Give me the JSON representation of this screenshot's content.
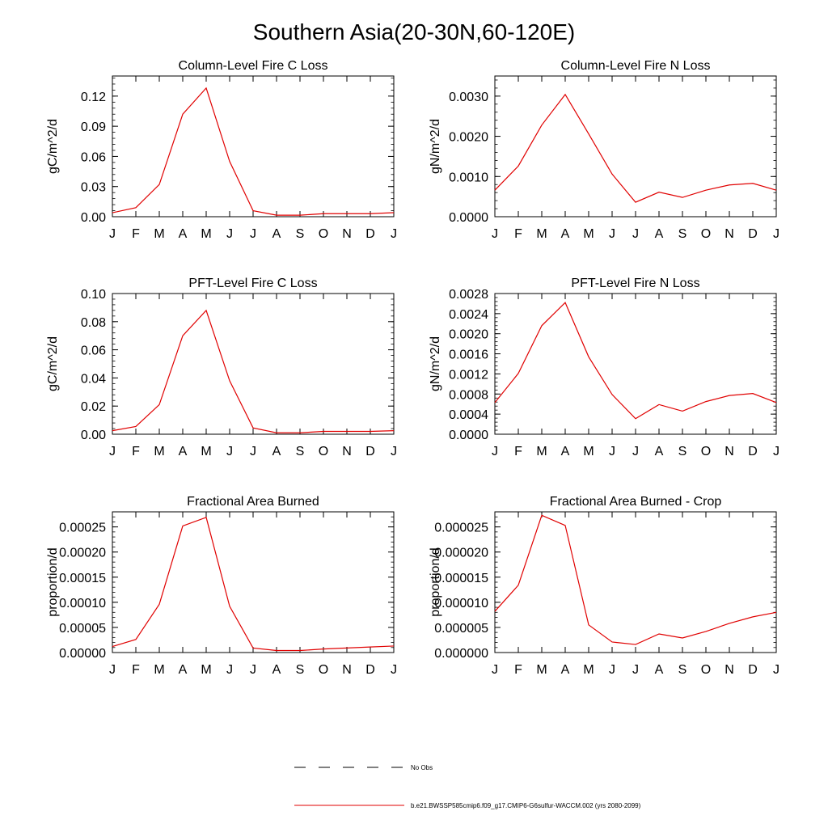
{
  "figure": {
    "title": "Southern Asia(20-30N,60-120E)",
    "months": [
      "J",
      "F",
      "M",
      "A",
      "M",
      "J",
      "J",
      "A",
      "S",
      "O",
      "N",
      "D",
      "J"
    ],
    "series_color": "#e00000",
    "legend": [
      {
        "label": "No Obs",
        "style": "dashed",
        "color": "#000000"
      },
      {
        "label": "b.e21.BWSSP585cmip6.f09_g17.CMIP6-G6sulfur-WACCM.002 (yrs 2080-2099)",
        "style": "solid",
        "color": "#e00000"
      }
    ]
  },
  "chart_data": [
    {
      "type": "line",
      "title": "Column-Level Fire C Loss",
      "ylabel": "gC/m^2/d",
      "ylim": [
        0,
        0.14
      ],
      "yticks": [
        0,
        0.03,
        0.06,
        0.09,
        0.12
      ],
      "ytick_labels": [
        "0.00",
        "0.03",
        "0.06",
        "0.09",
        "0.12"
      ],
      "x": [
        "J",
        "F",
        "M",
        "A",
        "M",
        "J",
        "J",
        "A",
        "S",
        "O",
        "N",
        "D",
        "J"
      ],
      "series": [
        {
          "values": [
            0.004,
            0.009,
            0.032,
            0.102,
            0.128,
            0.055,
            0.006,
            0.0015,
            0.0015,
            0.003,
            0.003,
            0.003,
            0.004
          ]
        }
      ]
    },
    {
      "type": "line",
      "title": "Column-Level Fire N Loss",
      "ylabel": "gN/m^2/d",
      "ylim": [
        0,
        0.0035
      ],
      "yticks": [
        0,
        0.001,
        0.002,
        0.003
      ],
      "ytick_labels": [
        "0.0000",
        "0.0010",
        "0.0020",
        "0.0030"
      ],
      "x": [
        "J",
        "F",
        "M",
        "A",
        "M",
        "J",
        "J",
        "A",
        "S",
        "O",
        "N",
        "D",
        "J"
      ],
      "series": [
        {
          "values": [
            0.00066,
            0.00126,
            0.00228,
            0.00304,
            0.00206,
            0.00106,
            0.00036,
            0.00061,
            0.00048,
            0.00066,
            0.00079,
            0.00083,
            0.00066
          ]
        }
      ]
    },
    {
      "type": "line",
      "title": "PFT-Level Fire C Loss",
      "ylabel": "gC/m^2/d",
      "ylim": [
        0,
        0.1
      ],
      "yticks": [
        0,
        0.02,
        0.04,
        0.06,
        0.08,
        0.1
      ],
      "ytick_labels": [
        "0.00",
        "0.02",
        "0.04",
        "0.06",
        "0.08",
        "0.10"
      ],
      "x": [
        "J",
        "F",
        "M",
        "A",
        "M",
        "J",
        "J",
        "A",
        "S",
        "O",
        "N",
        "D",
        "J"
      ],
      "series": [
        {
          "values": [
            0.0025,
            0.0055,
            0.021,
            0.07,
            0.088,
            0.038,
            0.0045,
            0.001,
            0.001,
            0.002,
            0.002,
            0.002,
            0.0025
          ]
        }
      ]
    },
    {
      "type": "line",
      "title": "PFT-Level Fire N Loss",
      "ylabel": "gN/m^2/d",
      "ylim": [
        0,
        0.0028
      ],
      "yticks": [
        0,
        0.0004,
        0.0008,
        0.0012,
        0.0016,
        0.002,
        0.0024,
        0.0028
      ],
      "ytick_labels": [
        "0.0000",
        "0.0004",
        "0.0008",
        "0.0012",
        "0.0016",
        "0.0020",
        "0.0024",
        "0.0028"
      ],
      "x": [
        "J",
        "F",
        "M",
        "A",
        "M",
        "J",
        "J",
        "A",
        "S",
        "O",
        "N",
        "D",
        "J"
      ],
      "series": [
        {
          "values": [
            0.00063,
            0.00121,
            0.00216,
            0.00262,
            0.00154,
            0.00079,
            0.00031,
            0.00059,
            0.00046,
            0.00065,
            0.00077,
            0.00081,
            0.00063
          ]
        }
      ]
    },
    {
      "type": "line",
      "title": "Fractional Area Burned",
      "ylabel": "proportion/d",
      "ylim": [
        0,
        0.00028
      ],
      "yticks": [
        0,
        5e-05,
        0.0001,
        0.00015,
        0.0002,
        0.00025
      ],
      "ytick_labels": [
        "0.00000",
        "0.00005",
        "0.00010",
        "0.00015",
        "0.00020",
        "0.00025"
      ],
      "x": [
        "J",
        "F",
        "M",
        "A",
        "M",
        "J",
        "J",
        "A",
        "S",
        "O",
        "N",
        "D",
        "J"
      ],
      "series": [
        {
          "values": [
            1.2e-05,
            2.6e-05,
            9.6e-05,
            0.000252,
            0.000269,
            9.2e-05,
            9e-06,
            4e-06,
            4e-06,
            7e-06,
            9e-06,
            1.1e-05,
            1.3e-05
          ]
        }
      ]
    },
    {
      "type": "line",
      "title": "Fractional Area Burned - Crop",
      "ylabel": "proportion/d",
      "ylim": [
        0,
        2.8e-05
      ],
      "yticks": [
        0,
        5e-06,
        1e-05,
        1.5e-05,
        2e-05,
        2.5e-05
      ],
      "ytick_labels": [
        "0.000000",
        "0.000005",
        "0.000010",
        "0.000015",
        "0.000020",
        "0.000025"
      ],
      "x": [
        "J",
        "F",
        "M",
        "A",
        "M",
        "J",
        "J",
        "A",
        "S",
        "O",
        "N",
        "D",
        "J"
      ],
      "series": [
        {
          "values": [
            8.2e-06,
            1.34e-05,
            2.73e-05,
            2.53e-05,
            5.5e-06,
            2.1e-06,
            1.6e-06,
            3.7e-06,
            2.9e-06,
            4.2e-06,
            5.8e-06,
            7.1e-06,
            8e-06
          ]
        }
      ]
    }
  ]
}
